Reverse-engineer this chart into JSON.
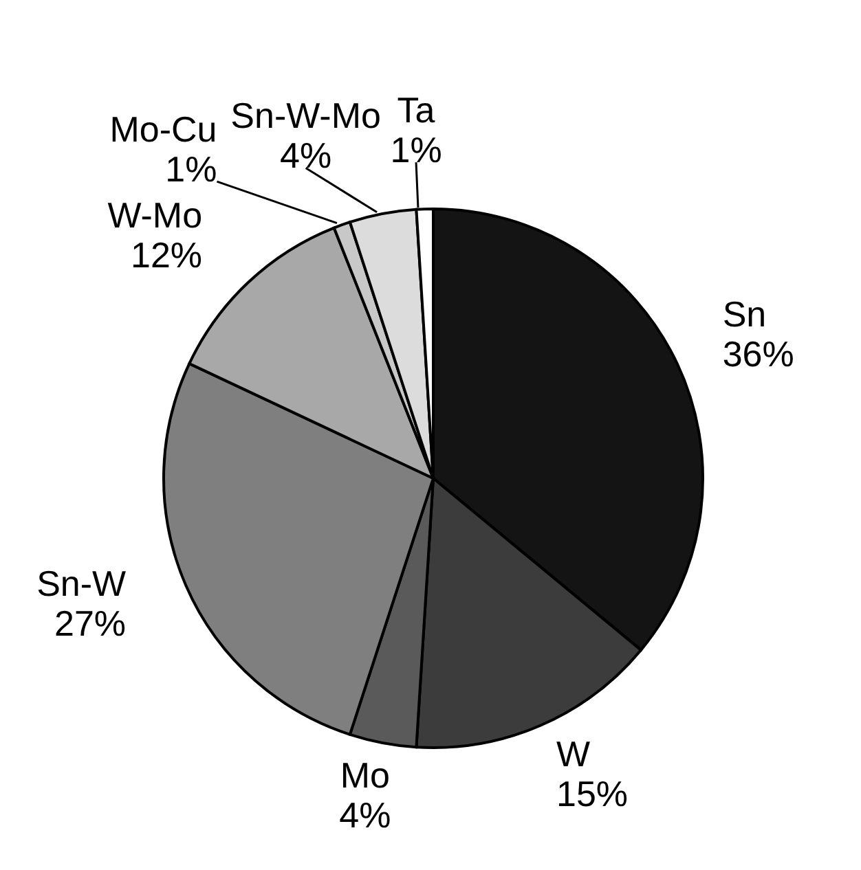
{
  "chart_data": {
    "type": "pie",
    "categories": [
      "Sn",
      "W",
      "Mo",
      "Sn-W",
      "W-Mo",
      "Mo-Cu",
      "Sn-W-Mo",
      "Ta"
    ],
    "values": [
      36,
      15,
      4,
      27,
      12,
      1,
      4,
      1
    ],
    "value_labels": [
      "36%",
      "15%",
      "4%",
      "27%",
      "12%",
      "1%",
      "4%",
      "1%"
    ],
    "colors": [
      "#141414",
      "#3c3c3c",
      "#5a5a5a",
      "#7f7f7f",
      "#a8a8a8",
      "#c8c8c8",
      "#dcdcdc",
      "#ffffff"
    ],
    "legend": false
  }
}
